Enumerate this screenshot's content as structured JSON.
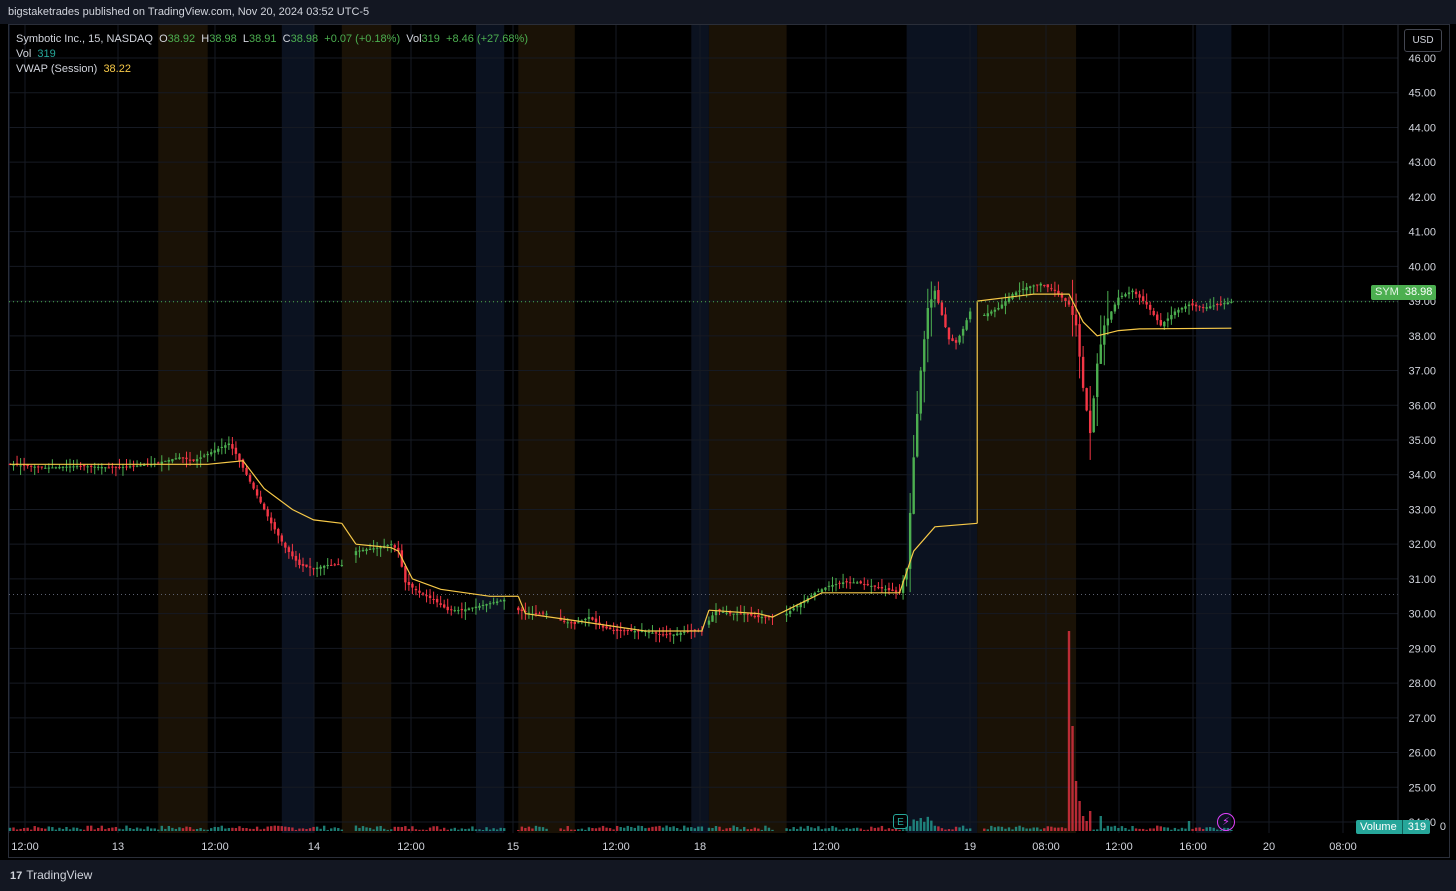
{
  "header": {
    "published": "bigstaketrades published on TradingView.com, Nov 20, 2024 03:52 UTC-5"
  },
  "footer": {
    "brand": "TradingView",
    "logo": "tradingview-logo-icon"
  },
  "legend": {
    "symbol_line": "Symbotic Inc., 15, NASDAQ",
    "o_label": "O",
    "o_value": "38.92",
    "h_label": "H",
    "h_value": "38.98",
    "l_label": "L",
    "l_value": "38.91",
    "c_label": "C",
    "c_value": "38.98",
    "change": "+0.07 (+0.18%)",
    "vol_label": "Vol",
    "vol_value": "319",
    "vol_change": "+8.46 (+27.68%)",
    "vol_row_label": "Vol",
    "vol_row_value": "319",
    "vwap_label": "VWAP (Session)",
    "vwap_value": "38.22"
  },
  "currency_button": "USD",
  "last_price_tag": {
    "symbol": "SYM",
    "price": "38.98"
  },
  "volume_tag": {
    "label": "Volume",
    "value": "319"
  },
  "icons": {
    "earnings": "E",
    "earnings_icon": "earnings-e-icon",
    "flash_icon": "lightning-icon"
  },
  "colors": {
    "up": "#4caf50",
    "down": "#f23645",
    "vwap": "#f7c948",
    "volume_up": "#26a69a",
    "volume_down": "#f23645",
    "premarket_bg": "#0b1220",
    "afterhours_bg": "#1a1206"
  },
  "chart_data": {
    "type": "candlestick",
    "yaxis": {
      "min": 24,
      "max": 46,
      "ticks": [
        "24.00",
        "25.00",
        "26.00",
        "27.00",
        "28.00",
        "29.00",
        "30.00",
        "31.00",
        "32.00",
        "33.00",
        "34.00",
        "35.00",
        "36.00",
        "37.00",
        "38.00",
        "39.00",
        "40.00",
        "41.00",
        "42.00",
        "43.00",
        "44.00",
        "45.00",
        "46.00"
      ],
      "bottom_label": "0"
    },
    "xaxis_ticks": [
      "12:00",
      "13",
      "12:00",
      "14",
      "12:00",
      "15",
      "12:00",
      "18",
      "12:00",
      "19",
      "08:00",
      "12:00",
      "16:00",
      "20",
      "08:00"
    ],
    "price_path": [
      [
        0,
        34.3
      ],
      [
        10,
        34.2
      ],
      [
        20,
        34.25
      ],
      [
        30,
        34.2
      ],
      [
        40,
        34.3
      ],
      [
        48,
        34.5
      ],
      [
        52,
        34.4
      ],
      [
        56,
        34.6
      ],
      [
        60,
        34.8
      ],
      [
        62,
        34.9
      ],
      [
        64,
        34.6
      ],
      [
        66,
        34.2
      ],
      [
        70,
        33.4
      ],
      [
        74,
        32.6
      ],
      [
        78,
        31.9
      ],
      [
        82,
        31.4
      ],
      [
        86,
        31.3
      ],
      [
        90,
        31.4
      ],
      [
        94,
        31.4
      ],
      [
        98,
        31.8
      ],
      [
        104,
        31.9
      ],
      [
        108,
        32.0
      ],
      [
        110,
        31.8
      ],
      [
        112,
        30.9
      ],
      [
        116,
        30.6
      ],
      [
        120,
        30.4
      ],
      [
        124,
        30.1
      ],
      [
        128,
        30.1
      ],
      [
        132,
        30.2
      ],
      [
        136,
        30.3
      ],
      [
        140,
        30.4
      ],
      [
        144,
        30.1
      ],
      [
        148,
        30.0
      ],
      [
        152,
        30.0
      ],
      [
        156,
        29.8
      ],
      [
        160,
        29.7
      ],
      [
        164,
        29.9
      ],
      [
        168,
        29.6
      ],
      [
        172,
        29.5
      ],
      [
        176,
        29.5
      ],
      [
        180,
        29.5
      ],
      [
        184,
        29.4
      ],
      [
        188,
        29.4
      ],
      [
        192,
        29.5
      ],
      [
        196,
        29.5
      ],
      [
        198,
        29.8
      ],
      [
        200,
        30.1
      ],
      [
        204,
        30.0
      ],
      [
        208,
        30.0
      ],
      [
        212,
        29.9
      ],
      [
        216,
        29.9
      ],
      [
        220,
        30.0
      ],
      [
        224,
        30.3
      ],
      [
        228,
        30.6
      ],
      [
        232,
        30.8
      ],
      [
        236,
        30.9
      ],
      [
        240,
        30.9
      ],
      [
        244,
        30.8
      ],
      [
        248,
        30.7
      ],
      [
        252,
        30.6
      ],
      [
        254,
        31.3
      ],
      [
        256,
        34.5
      ],
      [
        258,
        37.0
      ],
      [
        260,
        38.8
      ],
      [
        262,
        39.3
      ],
      [
        264,
        38.6
      ],
      [
        266,
        37.9
      ],
      [
        268,
        37.8
      ],
      [
        270,
        38.2
      ],
      [
        272,
        38.7
      ],
      [
        276,
        38.6
      ],
      [
        280,
        38.8
      ],
      [
        284,
        39.2
      ],
      [
        288,
        39.4
      ],
      [
        292,
        39.5
      ],
      [
        296,
        39.3
      ],
      [
        300,
        38.9
      ],
      [
        302,
        38.3
      ],
      [
        304,
        36.5
      ],
      [
        306,
        35.2
      ],
      [
        308,
        37.2
      ],
      [
        310,
        38.3
      ],
      [
        314,
        39.1
      ],
      [
        318,
        39.3
      ],
      [
        322,
        38.9
      ],
      [
        326,
        38.3
      ],
      [
        330,
        38.7
      ],
      [
        334,
        38.9
      ],
      [
        338,
        38.8
      ],
      [
        342,
        38.9
      ],
      [
        346,
        38.98
      ]
    ],
    "vwap_segments": [
      [
        [
          0,
          34.3
        ],
        [
          56,
          34.3
        ],
        [
          66,
          34.4
        ],
        [
          72,
          33.6
        ],
        [
          80,
          33.0
        ],
        [
          86,
          32.7
        ],
        [
          94,
          32.6
        ]
      ],
      [
        [
          98,
          32.0
        ],
        [
          108,
          31.9
        ],
        [
          110,
          31.8
        ],
        [
          114,
          31.0
        ],
        [
          122,
          30.7
        ],
        [
          136,
          30.5
        ],
        [
          140,
          30.5
        ]
      ],
      [
        [
          144,
          30.5
        ],
        [
          146,
          30.0
        ],
        [
          160,
          29.8
        ],
        [
          180,
          29.5
        ],
        [
          196,
          29.5
        ]
      ],
      [
        [
          198,
          30.1
        ],
        [
          212,
          30.0
        ],
        [
          216,
          29.9
        ],
        [
          220,
          30.1
        ],
        [
          230,
          30.6
        ],
        [
          252,
          30.6
        ],
        [
          256,
          31.8
        ],
        [
          262,
          32.5
        ],
        [
          274,
          32.6
        ]
      ],
      [
        [
          274,
          39.0
        ],
        [
          290,
          39.2
        ],
        [
          300,
          39.2
        ],
        [
          304,
          38.4
        ],
        [
          308,
          38.0
        ],
        [
          314,
          38.15
        ],
        [
          320,
          38.2
        ],
        [
          346,
          38.22
        ]
      ]
    ],
    "sessions": [
      {
        "type": "pre",
        "x0": -4,
        "x1": 0
      },
      {
        "type": "ah",
        "x0": 42,
        "x1": 56
      },
      {
        "type": "pre",
        "x0": 77,
        "x1": 86
      },
      {
        "type": "ah",
        "x0": 94,
        "x1": 108
      },
      {
        "type": "pre",
        "x0": 132,
        "x1": 140
      },
      {
        "type": "ah",
        "x0": 144,
        "x1": 160
      },
      {
        "type": "pre",
        "x0": 193,
        "x1": 198
      },
      {
        "type": "ah",
        "x0": 198,
        "x1": 220
      },
      {
        "type": "pre",
        "x0": 254,
        "x1": 274
      },
      {
        "type": "ah",
        "x0": 274,
        "x1": 302
      },
      {
        "type": "pre",
        "x0": 336,
        "x1": 346
      }
    ],
    "volume_spikes": [
      [
        300,
        40
      ],
      [
        301,
        21
      ],
      [
        302,
        10
      ],
      [
        303,
        6
      ],
      [
        304,
        3
      ],
      [
        305,
        2
      ],
      [
        306,
        4
      ],
      [
        309,
        3
      ],
      [
        334,
        2
      ]
    ],
    "last_price": 38.98,
    "reference_price": 30.55
  }
}
